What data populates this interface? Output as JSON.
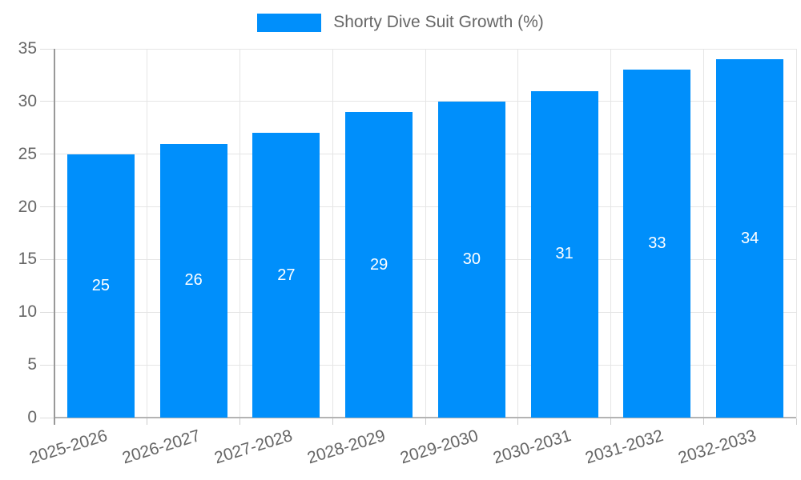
{
  "legend": {
    "position": "top"
  },
  "colors": {
    "bar": "#008FFB",
    "grid": "#e5e5e5",
    "y_tick": "#dddddd",
    "boundary_tick": "#cccccc",
    "y_axis_line": "#999999",
    "x_axis_line": "#b3b3b3",
    "axis_label_text": "#666666",
    "legend_text": "#666666",
    "value_label_text": "#ffffff",
    "background": "#ffffff"
  },
  "chart_data": {
    "type": "bar",
    "categories": [
      "2025-2026",
      "2026-2027",
      "2027-2028",
      "2028-2029",
      "2029-2030",
      "2030-2031",
      "2031-2032",
      "2032-2033"
    ],
    "series": [
      {
        "name": "Shorty Dive Suit Growth (%)",
        "values": [
          25,
          26,
          27,
          29,
          30,
          31,
          33,
          34
        ]
      }
    ],
    "title": "",
    "xlabel": "",
    "ylabel": "",
    "ylim": [
      0,
      35
    ],
    "y_ticks": [
      0,
      5,
      10,
      15,
      20,
      25,
      30,
      35
    ],
    "grid": true,
    "legend_position": "top",
    "data_labels": "inside-center",
    "x_label_rotation_deg": -17
  }
}
